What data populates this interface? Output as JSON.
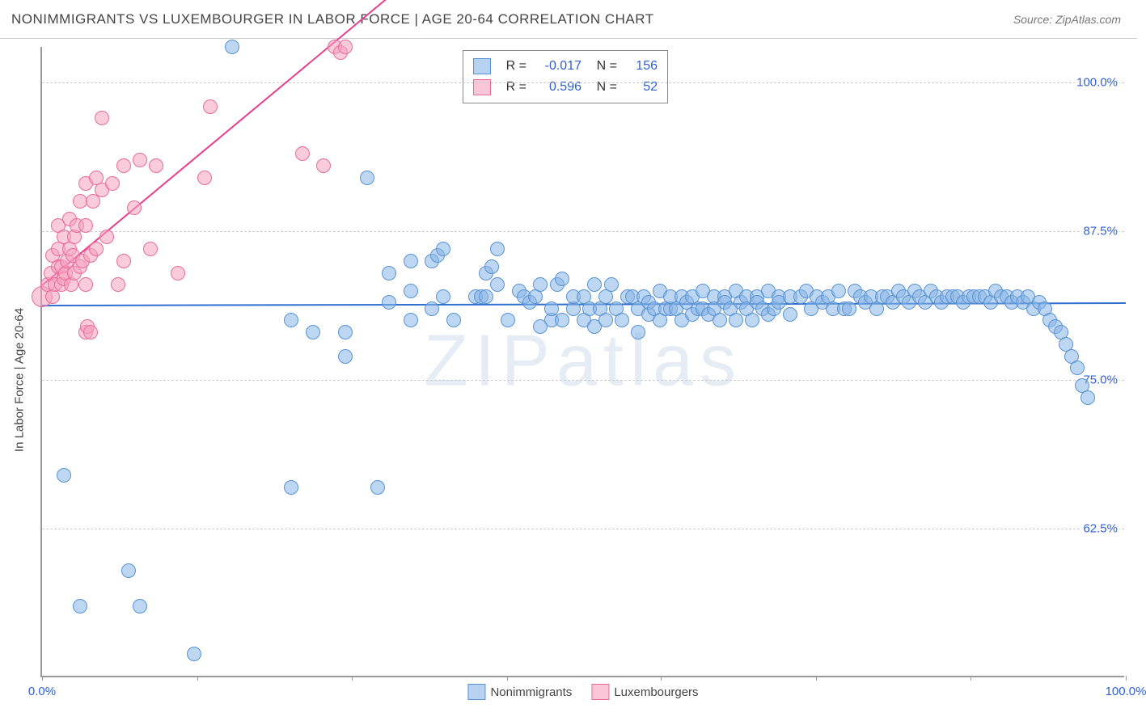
{
  "header": {
    "title": "NONIMMIGRANTS VS LUXEMBOURGER IN LABOR FORCE | AGE 20-64 CORRELATION CHART",
    "source_prefix": "Source: ",
    "source": "ZipAtlas.com"
  },
  "chart": {
    "type": "scatter",
    "background_color": "#ffffff",
    "grid_color": "#cccccc",
    "axis_color": "#999999",
    "x": {
      "min": 0,
      "max": 100,
      "label_min": "0.0%",
      "label_max": "100.0%",
      "ticks": [
        0,
        14.3,
        28.6,
        42.9,
        57.1,
        71.4,
        85.7,
        100
      ]
    },
    "y": {
      "min": 50,
      "max": 103,
      "label": "In Labor Force | Age 20-64",
      "gridlines": [
        62.5,
        75.0,
        87.5,
        100.0
      ],
      "gridlabels": [
        "62.5%",
        "75.0%",
        "87.5%",
        "100.0%"
      ]
    },
    "marker_radius": 9,
    "marker_radius_large": 13,
    "watermark": "ZIPatlas",
    "correlation_box": {
      "rows": [
        {
          "swatch": "blue",
          "r_label": "R =",
          "r": "-0.017",
          "n_label": "N =",
          "n": "156"
        },
        {
          "swatch": "pink",
          "r_label": "R =",
          "r": "0.596",
          "n_label": "N =",
          "n": "52"
        }
      ]
    },
    "legend": [
      {
        "swatch": "blue",
        "label": "Nonimmigrants"
      },
      {
        "swatch": "pink",
        "label": "Luxembourgers"
      }
    ],
    "series": {
      "blue": {
        "color_fill": "rgba(135,180,230,0.55)",
        "color_stroke": "#5a93d4",
        "trend": {
          "color": "#2f6fd0",
          "x1": 0,
          "y1": 81.3,
          "x2": 100,
          "y2": 81.5
        },
        "points": [
          [
            17.5,
            103
          ],
          [
            2,
            67
          ],
          [
            3.5,
            56
          ],
          [
            8,
            59
          ],
          [
            9,
            56
          ],
          [
            14,
            52
          ],
          [
            23,
            66
          ],
          [
            31,
            66
          ],
          [
            23,
            80
          ],
          [
            25,
            79
          ],
          [
            28,
            79
          ],
          [
            28,
            77
          ],
          [
            32,
            81.5
          ],
          [
            32,
            84
          ],
          [
            30,
            92
          ],
          [
            34,
            80
          ],
          [
            34,
            82.5
          ],
          [
            34,
            85
          ],
          [
            36,
            85
          ],
          [
            36,
            81
          ],
          [
            37,
            82
          ],
          [
            36.5,
            85.5
          ],
          [
            37,
            86
          ],
          [
            38,
            80
          ],
          [
            40,
            82
          ],
          [
            40.5,
            82
          ],
          [
            41,
            82
          ],
          [
            41,
            84
          ],
          [
            41.5,
            84.5
          ],
          [
            42,
            83
          ],
          [
            42,
            86
          ],
          [
            43,
            80
          ],
          [
            44,
            82.5
          ],
          [
            44.5,
            82
          ],
          [
            45,
            81.5
          ],
          [
            45.5,
            82
          ],
          [
            46,
            83
          ],
          [
            46,
            79.5
          ],
          [
            47,
            80
          ],
          [
            47,
            81
          ],
          [
            47.5,
            83
          ],
          [
            48,
            83.5
          ],
          [
            48,
            80
          ],
          [
            49,
            81
          ],
          [
            49,
            82
          ],
          [
            50,
            80
          ],
          [
            50,
            82
          ],
          [
            50.5,
            81
          ],
          [
            51,
            79.5
          ],
          [
            51,
            83
          ],
          [
            51.5,
            81
          ],
          [
            52,
            82
          ],
          [
            52,
            80
          ],
          [
            52.5,
            83
          ],
          [
            53,
            81
          ],
          [
            53.5,
            80
          ],
          [
            54,
            82
          ],
          [
            54.5,
            82
          ],
          [
            55,
            81
          ],
          [
            55,
            79
          ],
          [
            55.5,
            82
          ],
          [
            56,
            80.5
          ],
          [
            56,
            81.5
          ],
          [
            56.5,
            81
          ],
          [
            57,
            82.5
          ],
          [
            57,
            80
          ],
          [
            57.5,
            81
          ],
          [
            58,
            81
          ],
          [
            58,
            82
          ],
          [
            58.5,
            81
          ],
          [
            59,
            82
          ],
          [
            59,
            80
          ],
          [
            59.5,
            81.5
          ],
          [
            60,
            82
          ],
          [
            60,
            80.5
          ],
          [
            60.5,
            81
          ],
          [
            61,
            82.5
          ],
          [
            61,
            81
          ],
          [
            61.5,
            80.5
          ],
          [
            62,
            82
          ],
          [
            62,
            81
          ],
          [
            62.5,
            80
          ],
          [
            63,
            82
          ],
          [
            63,
            81.5
          ],
          [
            63.5,
            81
          ],
          [
            64,
            82.5
          ],
          [
            64,
            80
          ],
          [
            64.5,
            81.5
          ],
          [
            65,
            82
          ],
          [
            65,
            81
          ],
          [
            65.5,
            80
          ],
          [
            66,
            82
          ],
          [
            66,
            81.5
          ],
          [
            66.5,
            81
          ],
          [
            67,
            82.5
          ],
          [
            67,
            80.5
          ],
          [
            67.5,
            81
          ],
          [
            68,
            82
          ],
          [
            68,
            81.5
          ],
          [
            69,
            82
          ],
          [
            69,
            80.5
          ],
          [
            70,
            82
          ],
          [
            70.5,
            82.5
          ],
          [
            71,
            81
          ],
          [
            71.5,
            82
          ],
          [
            72,
            81.5
          ],
          [
            72.5,
            82
          ],
          [
            73,
            81
          ],
          [
            73.5,
            82.5
          ],
          [
            74,
            81
          ],
          [
            74.5,
            81
          ],
          [
            75,
            82.5
          ],
          [
            75.5,
            82
          ],
          [
            76,
            81.5
          ],
          [
            76.5,
            82
          ],
          [
            77,
            81
          ],
          [
            77.5,
            82
          ],
          [
            78,
            82
          ],
          [
            78.5,
            81.5
          ],
          [
            79,
            82.5
          ],
          [
            79.5,
            82
          ],
          [
            80,
            81.5
          ],
          [
            80.5,
            82.5
          ],
          [
            81,
            82
          ],
          [
            81.5,
            81.5
          ],
          [
            82,
            82.5
          ],
          [
            82.5,
            82
          ],
          [
            83,
            81.5
          ],
          [
            83.5,
            82
          ],
          [
            84,
            82
          ],
          [
            84.5,
            82
          ],
          [
            85,
            81.5
          ],
          [
            85.5,
            82
          ],
          [
            86,
            82
          ],
          [
            86.5,
            82
          ],
          [
            87,
            82
          ],
          [
            87.5,
            81.5
          ],
          [
            88,
            82.5
          ],
          [
            88.5,
            82
          ],
          [
            89,
            82
          ],
          [
            89.5,
            81.5
          ],
          [
            90,
            82
          ],
          [
            90.5,
            81.5
          ],
          [
            91,
            82
          ],
          [
            91.5,
            81
          ],
          [
            92,
            81.5
          ],
          [
            92.5,
            81
          ],
          [
            93,
            80
          ],
          [
            93.5,
            79.5
          ],
          [
            94,
            79
          ],
          [
            94.5,
            78
          ],
          [
            95,
            77
          ],
          [
            95.5,
            76
          ],
          [
            96,
            74.5
          ],
          [
            96.5,
            73.5
          ]
        ]
      },
      "pink": {
        "color_fill": "rgba(245,160,190,0.55)",
        "color_stroke": "#e86b9a",
        "trend": {
          "color": "#e83e8c",
          "x1": 0,
          "y1": 83,
          "x2": 33,
          "y2": 108
        },
        "trend_dash_end": {
          "x2": 35,
          "y2": 109.5
        },
        "points_large": [
          [
            0,
            82
          ]
        ],
        "points": [
          [
            0.5,
            83
          ],
          [
            0.8,
            84
          ],
          [
            1,
            82
          ],
          [
            1,
            85.5
          ],
          [
            1.2,
            83
          ],
          [
            1.5,
            84.5
          ],
          [
            1.5,
            86
          ],
          [
            1.5,
            88
          ],
          [
            1.8,
            83
          ],
          [
            1.8,
            84.5
          ],
          [
            2,
            83.5
          ],
          [
            2,
            87
          ],
          [
            2.2,
            84
          ],
          [
            2.3,
            85
          ],
          [
            2.5,
            86
          ],
          [
            2.5,
            88.5
          ],
          [
            2.7,
            83
          ],
          [
            2.8,
            85.5
          ],
          [
            3,
            84
          ],
          [
            3,
            87
          ],
          [
            3.2,
            88
          ],
          [
            3.5,
            84.5
          ],
          [
            3.5,
            90
          ],
          [
            3.7,
            85
          ],
          [
            4,
            83
          ],
          [
            4,
            88
          ],
          [
            4,
            91.5
          ],
          [
            4,
            79
          ],
          [
            4.2,
            79.5
          ],
          [
            4.5,
            79
          ],
          [
            4.5,
            85.5
          ],
          [
            4.7,
            90
          ],
          [
            5,
            86
          ],
          [
            5,
            92
          ],
          [
            5.5,
            91
          ],
          [
            5.5,
            97
          ],
          [
            6,
            87
          ],
          [
            6.5,
            91.5
          ],
          [
            7,
            83
          ],
          [
            7.5,
            85
          ],
          [
            7.5,
            93
          ],
          [
            8.5,
            89.5
          ],
          [
            9,
            93.5
          ],
          [
            10,
            86
          ],
          [
            10.5,
            93
          ],
          [
            12.5,
            84
          ],
          [
            15,
            92
          ],
          [
            15.5,
            98
          ],
          [
            24,
            94
          ],
          [
            26,
            93
          ],
          [
            27,
            103
          ],
          [
            27.5,
            102.5
          ],
          [
            28,
            103
          ]
        ]
      }
    }
  }
}
